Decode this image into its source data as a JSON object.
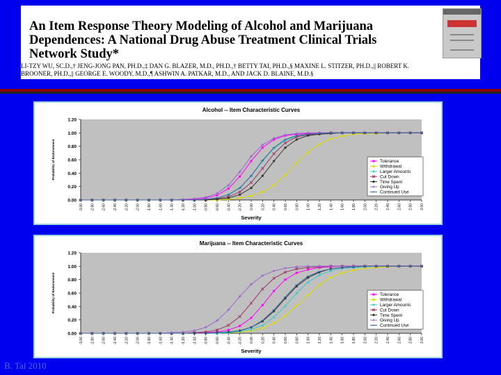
{
  "header": {
    "title": "An Item Response Theory Modeling of Alcohol and Marijuana Dependences: A National Drug Abuse Treatment Clinical Trials Network Study*",
    "authors": "LI-TZY WU, SC.D.,† JENG-JONG PAN, PH.D.,‡ DAN G. BLAZER, M.D., PH.D.,† BETTY TAI, PH.D.,§ MAXINE L. STITZER, PH.D.,|| ROBERT K. BROONER, PH.D.,|| GEORGE E. WOODY, M.D.,¶ ASHWIN A. PATKAR, M.D., AND JACK D. BLAINE, M.D.§"
  },
  "footer": {
    "text": "B. Tai 2010"
  },
  "chart_data": [
    {
      "type": "line",
      "title": "Alcohol -- Item Characteristic Curves",
      "xlabel": "Severity",
      "ylabel": "Probability of Endorsement",
      "xlim": [
        -3.0,
        3.0
      ],
      "ylim": [
        0,
        1.2
      ],
      "yticks": [
        "0.00",
        "0.20",
        "0.40",
        "0.60",
        "0.80",
        "1.00",
        "1.20"
      ],
      "xticks": [
        "-3.00",
        "-2.80",
        "-2.60",
        "-2.40",
        "-2.20",
        "-2.00",
        "-1.80",
        "-1.60",
        "-1.40",
        "-1.20",
        "-1.00",
        "-0.80",
        "-0.60",
        "-0.40",
        "-0.20",
        "0.00",
        "0.20",
        "0.40",
        "0.60",
        "0.80",
        "1.00",
        "1.20",
        "1.40",
        "1.60",
        "1.80",
        "2.00",
        "2.20",
        "2.40",
        "2.60",
        "2.80",
        "3.00"
      ],
      "grid": false,
      "legend_position": "right",
      "series": [
        {
          "name": "Tolerance",
          "color": "#ff00ff",
          "values": [
            0,
            0,
            0,
            0,
            0,
            0,
            0,
            0,
            0,
            0,
            0.01,
            0.03,
            0.07,
            0.17,
            0.35,
            0.58,
            0.78,
            0.9,
            0.96,
            0.98,
            0.99,
            1,
            1,
            1,
            1,
            1,
            1,
            1,
            1,
            1,
            1
          ]
        },
        {
          "name": "Withdrawal",
          "color": "#dddd00",
          "values": [
            0,
            0,
            0,
            0,
            0,
            0,
            0,
            0,
            0,
            0,
            0,
            0,
            0,
            0.01,
            0.03,
            0.06,
            0.12,
            0.22,
            0.37,
            0.55,
            0.71,
            0.83,
            0.91,
            0.95,
            0.98,
            0.99,
            0.99,
            1,
            1,
            1,
            1
          ]
        },
        {
          "name": "Larger Amounts",
          "color": "#33cccc",
          "values": [
            0,
            0,
            0,
            0,
            0,
            0,
            0,
            0,
            0,
            0,
            0,
            0.01,
            0.03,
            0.08,
            0.18,
            0.36,
            0.58,
            0.77,
            0.89,
            0.95,
            0.98,
            0.99,
            1,
            1,
            1,
            1,
            1,
            1,
            1,
            1,
            1
          ]
        },
        {
          "name": "Cut Down",
          "color": "#993366",
          "values": [
            0,
            0,
            0,
            0,
            0,
            0,
            0,
            0,
            0,
            0,
            0,
            0,
            0.02,
            0.05,
            0.12,
            0.26,
            0.47,
            0.69,
            0.85,
            0.94,
            0.97,
            0.99,
            1,
            1,
            1,
            1,
            1,
            1,
            1,
            1,
            1
          ]
        },
        {
          "name": "Time Spent",
          "color": "#333333",
          "values": [
            0,
            0,
            0,
            0,
            0,
            0,
            0,
            0,
            0,
            0,
            0,
            0,
            0.01,
            0.03,
            0.08,
            0.18,
            0.36,
            0.58,
            0.78,
            0.9,
            0.96,
            0.98,
            0.99,
            1,
            1,
            1,
            1,
            1,
            1,
            1,
            1
          ]
        },
        {
          "name": "Giving Up",
          "color": "#9966cc",
          "values": [
            0,
            0,
            0,
            0,
            0,
            0,
            0,
            0,
            0,
            0.01,
            0.02,
            0.04,
            0.1,
            0.22,
            0.42,
            0.65,
            0.82,
            0.92,
            0.97,
            0.99,
            1,
            1,
            1,
            1,
            1,
            1,
            1,
            1,
            1,
            1,
            1
          ]
        },
        {
          "name": "Continued Use",
          "color": "#336699",
          "values": [
            0,
            0,
            0,
            0,
            0,
            0,
            0,
            0,
            0,
            0,
            0,
            0.01,
            0.03,
            0.08,
            0.18,
            0.36,
            0.59,
            0.78,
            0.9,
            0.96,
            0.98,
            0.99,
            1,
            1,
            1,
            1,
            1,
            1,
            1,
            1,
            1
          ]
        }
      ]
    },
    {
      "type": "line",
      "title": "Marijuana -- Item Characteristic Curves",
      "xlabel": "Severity",
      "ylabel": "Probability of Endorsement",
      "xlim": [
        -3.0,
        3.0
      ],
      "ylim": [
        0,
        1.2
      ],
      "yticks": [
        "0.00",
        "0.20",
        "0.40",
        "0.60",
        "0.80",
        "1.00",
        "1.20"
      ],
      "xticks": [
        "-3.00",
        "-2.80",
        "-2.60",
        "-2.40",
        "-2.20",
        "-2.00",
        "-1.80",
        "-1.60",
        "-1.40",
        "-1.20",
        "-1.00",
        "-0.80",
        "-0.60",
        "-0.40",
        "-0.20",
        "0.00",
        "0.20",
        "0.40",
        "0.60",
        "0.80",
        "1.00",
        "1.20",
        "1.40",
        "1.60",
        "1.80",
        "2.00",
        "2.20",
        "2.40",
        "2.60",
        "2.80",
        "3.00"
      ],
      "grid": false,
      "legend_position": "right",
      "series": [
        {
          "name": "Tolerance",
          "color": "#ff00ff",
          "values": [
            0,
            0,
            0,
            0,
            0,
            0,
            0,
            0,
            0,
            0,
            0,
            0.01,
            0.02,
            0.05,
            0.11,
            0.23,
            0.42,
            0.63,
            0.8,
            0.9,
            0.95,
            0.98,
            0.99,
            1,
            1,
            1,
            1,
            1,
            1,
            1,
            1
          ]
        },
        {
          "name": "Withdrawal",
          "color": "#dddd00",
          "values": [
            0,
            0,
            0,
            0,
            0,
            0,
            0,
            0,
            0,
            0,
            0,
            0,
            0,
            0.01,
            0.02,
            0.04,
            0.08,
            0.15,
            0.26,
            0.41,
            0.57,
            0.72,
            0.83,
            0.9,
            0.94,
            0.97,
            0.98,
            0.99,
            1,
            1,
            1
          ]
        },
        {
          "name": "Larger Amounts",
          "color": "#33cccc",
          "values": [
            0,
            0,
            0,
            0,
            0,
            0,
            0,
            0,
            0,
            0,
            0,
            0,
            0,
            0.01,
            0.03,
            0.06,
            0.12,
            0.24,
            0.41,
            0.6,
            0.76,
            0.87,
            0.93,
            0.97,
            0.98,
            0.99,
            1,
            1,
            1,
            1,
            1
          ]
        },
        {
          "name": "Cut Down",
          "color": "#993366",
          "values": [
            0,
            0,
            0,
            0,
            0,
            0,
            0,
            0,
            0,
            0,
            0.01,
            0.02,
            0.05,
            0.12,
            0.25,
            0.45,
            0.66,
            0.82,
            0.91,
            0.96,
            0.98,
            0.99,
            1,
            1,
            1,
            1,
            1,
            1,
            1,
            1,
            1
          ]
        },
        {
          "name": "Time Spent",
          "color": "#333333",
          "values": [
            0,
            0,
            0,
            0,
            0,
            0,
            0,
            0,
            0,
            0,
            0,
            0,
            0.01,
            0.02,
            0.04,
            0.09,
            0.18,
            0.33,
            0.52,
            0.7,
            0.83,
            0.91,
            0.96,
            0.98,
            0.99,
            1,
            1,
            1,
            1,
            1,
            1
          ]
        },
        {
          "name": "Giving Up",
          "color": "#9966cc",
          "values": [
            0,
            0,
            0,
            0,
            0,
            0,
            0,
            0,
            0.01,
            0.02,
            0.04,
            0.09,
            0.19,
            0.35,
            0.55,
            0.73,
            0.86,
            0.93,
            0.97,
            0.99,
            1,
            1,
            1,
            1,
            1,
            1,
            1,
            1,
            1,
            1,
            1
          ]
        },
        {
          "name": "Continued Use",
          "color": "#336699",
          "values": [
            0,
            0,
            0,
            0,
            0,
            0,
            0,
            0,
            0,
            0,
            0,
            0,
            0.01,
            0.02,
            0.04,
            0.09,
            0.19,
            0.35,
            0.54,
            0.72,
            0.85,
            0.92,
            0.96,
            0.98,
            0.99,
            1,
            1,
            1,
            1,
            1,
            1
          ]
        }
      ]
    }
  ]
}
